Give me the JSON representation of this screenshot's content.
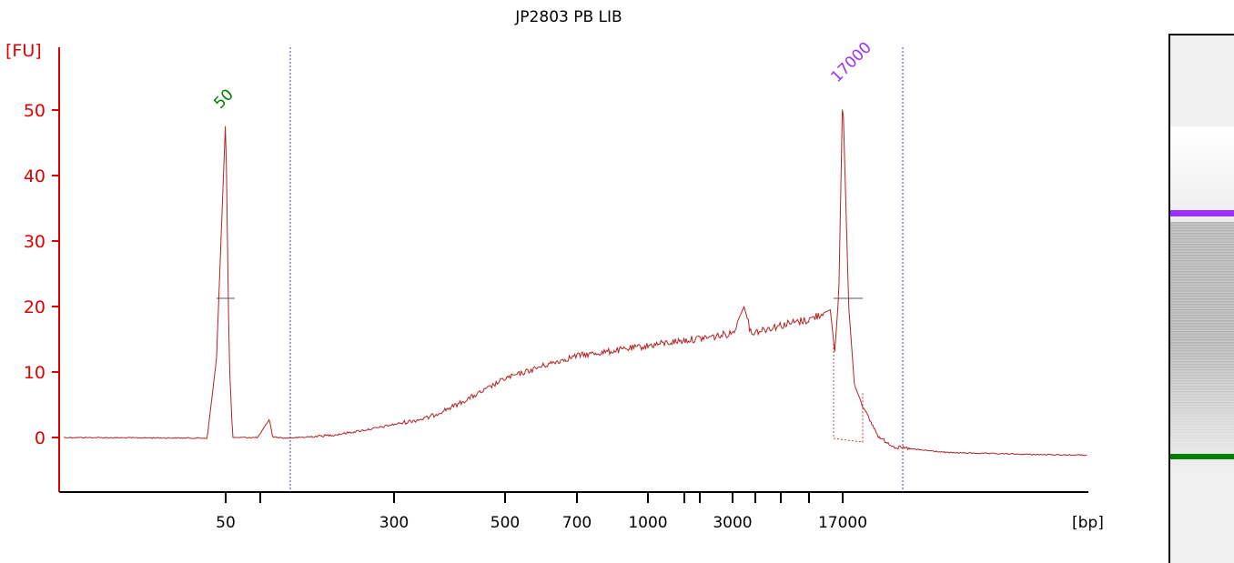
{
  "chart_data": {
    "type": "line",
    "title": "JP2803 PB LIB",
    "ylabel": "[FU]",
    "xlabel": "[bp]",
    "ylim": [
      -8.5,
      59
    ],
    "yticks": [
      0,
      10,
      20,
      30,
      40,
      50
    ],
    "x_ticks": [
      {
        "label": "50"
      },
      {
        "label": ""
      },
      {
        "label": "300"
      },
      {
        "label": "500"
      },
      {
        "label": "700"
      },
      {
        "label": "1000"
      },
      {
        "label": ""
      },
      {
        "label": ""
      },
      {
        "label": "3000"
      },
      {
        "label": ""
      },
      {
        "label": ""
      },
      {
        "label": ""
      },
      {
        "label": "17000"
      }
    ],
    "peaks": [
      {
        "label": "50",
        "height": 49,
        "color": "#008000"
      },
      {
        "label": "17000",
        "height": 53,
        "color": "#9b30ff"
      }
    ],
    "series": [
      {
        "color": "#b22222",
        "points": [
          {
            "size_bp": 35,
            "fu": 0.0
          },
          {
            "size_bp": 48,
            "fu": -0.1
          },
          {
            "size_bp": 49,
            "fu": 12
          },
          {
            "size_bp": 50,
            "fu": 49
          },
          {
            "size_bp": 51,
            "fu": 12
          },
          {
            "size_bp": 52,
            "fu": 0.0
          },
          {
            "size_bp": 60,
            "fu": 0.0
          },
          {
            "size_bp": 64,
            "fu": 2.8
          },
          {
            "size_bp": 67,
            "fu": 0.1
          },
          {
            "size_bp": 80,
            "fu": -0.1
          },
          {
            "size_bp": 100,
            "fu": 0.0
          },
          {
            "size_bp": 150,
            "fu": 0.4
          },
          {
            "size_bp": 200,
            "fu": 1.0
          },
          {
            "size_bp": 250,
            "fu": 1.5
          },
          {
            "size_bp": 300,
            "fu": 2.0
          },
          {
            "size_bp": 350,
            "fu": 3.0
          },
          {
            "size_bp": 400,
            "fu": 5.0
          },
          {
            "size_bp": 450,
            "fu": 7.0
          },
          {
            "size_bp": 500,
            "fu": 9.0
          },
          {
            "size_bp": 550,
            "fu": 10.0
          },
          {
            "size_bp": 600,
            "fu": 11.0
          },
          {
            "size_bp": 700,
            "fu": 12.5
          },
          {
            "size_bp": 800,
            "fu": 13.0
          },
          {
            "size_bp": 1000,
            "fu": 14.0
          },
          {
            "size_bp": 1300,
            "fu": 14.5
          },
          {
            "size_bp": 1800,
            "fu": 15.0
          },
          {
            "size_bp": 2500,
            "fu": 15.5
          },
          {
            "size_bp": 3000,
            "fu": 16.0
          },
          {
            "size_bp": 3600,
            "fu": 20.0
          },
          {
            "size_bp": 4000,
            "fu": 16.0
          },
          {
            "size_bp": 6000,
            "fu": 17.0
          },
          {
            "size_bp": 10000,
            "fu": 18.0
          },
          {
            "size_bp": 14000,
            "fu": 19.5
          },
          {
            "size_bp": 15000,
            "fu": 13.0
          },
          {
            "size_bp": 16000,
            "fu": 22.0
          },
          {
            "size_bp": 17000,
            "fu": 53.0
          },
          {
            "size_bp": 18000,
            "fu": 20.0
          },
          {
            "size_bp": 19000,
            "fu": 8.0
          },
          {
            "size_bp": 21000,
            "fu": 4.0
          },
          {
            "size_bp": 24000,
            "fu": 0.0
          },
          {
            "size_bp": 28000,
            "fu": -1.5
          },
          {
            "size_bp": 40000,
            "fu": -2.3
          },
          {
            "size_bp": 70000,
            "fu": -2.6
          },
          {
            "size_bp": 100000,
            "fu": -2.7
          }
        ]
      }
    ],
    "grid": false,
    "legend": "none"
  },
  "gel": {
    "background": "#f0f0f0",
    "upper_marker_color": "#9b30ff",
    "lower_marker_color": "#008000"
  }
}
